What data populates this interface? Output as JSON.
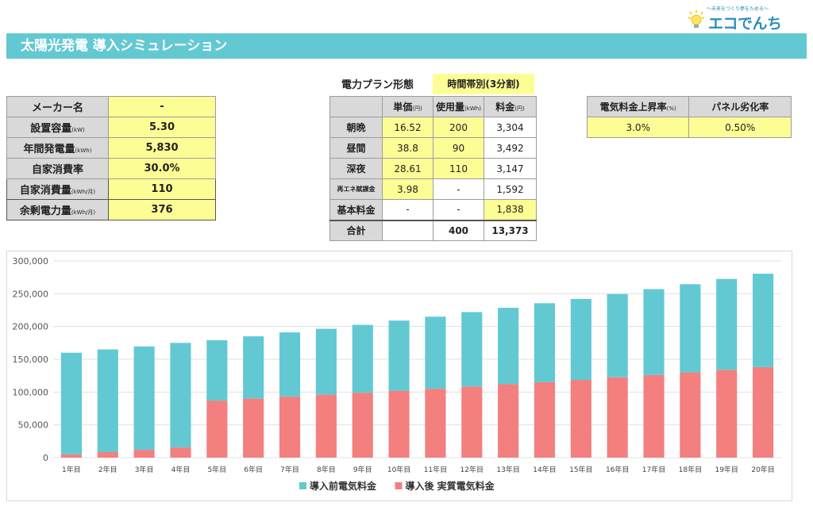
{
  "logo": {
    "tagline": "〜未来をつくり夢をためる〜",
    "brand": "エコでんち"
  },
  "title": "太陽光発電 導入シミュレーション",
  "left_table": [
    {
      "label": "メーカー名",
      "unit": "",
      "value": "-"
    },
    {
      "label": "設置容量",
      "unit": "(kW)",
      "value": "5.30"
    },
    {
      "label": "年間発電量",
      "unit": "(kWh)",
      "value": "5,830"
    },
    {
      "label": "自家消費率",
      "unit": "",
      "value": "30.0%"
    },
    {
      "label": "自家消費量",
      "unit": "(kWh/月)",
      "value": "110"
    },
    {
      "label": "余剰電力量",
      "unit": "(kWh/月)",
      "value": "376"
    }
  ],
  "plan": {
    "label": "電力プラン形態",
    "value": "時間帯別(3分割)",
    "headers": [
      {
        "label": "単価",
        "unit": "(円)"
      },
      {
        "label": "使用量",
        "unit": "(kWh)"
      },
      {
        "label": "料金",
        "unit": "(円)"
      }
    ],
    "rows": [
      {
        "label": "朝晩",
        "price": "16.52",
        "usage": "200",
        "fee": "3,304"
      },
      {
        "label": "昼間",
        "price": "38.8",
        "usage": "90",
        "fee": "3,492"
      },
      {
        "label": "深夜",
        "price": "28.61",
        "usage": "110",
        "fee": "3,147"
      },
      {
        "label": "再エネ賦課金",
        "price": "3.98",
        "usage": "-",
        "fee": "1,592"
      },
      {
        "label": "基本料金",
        "price": "-",
        "usage": "-",
        "fee": "1,838"
      }
    ],
    "total": {
      "label": "合計",
      "price": "",
      "usage": "400",
      "fee": "13,373"
    }
  },
  "rates": {
    "headers": [
      {
        "label": "電気料金上昇率",
        "unit": "(%)"
      },
      {
        "label": "パネル劣化率",
        "unit": ""
      }
    ],
    "values": [
      "3.0%",
      "0.50%"
    ]
  },
  "chart_data": {
    "type": "bar",
    "stacked": true,
    "categories": [
      "1年目",
      "2年目",
      "3年目",
      "4年目",
      "5年目",
      "6年目",
      "7年目",
      "8年目",
      "9年目",
      "10年目",
      "11年目",
      "12年目",
      "13年目",
      "14年目",
      "15年目",
      "16年目",
      "17年目",
      "18年目",
      "19年目",
      "20年目"
    ],
    "series": [
      {
        "name": "導入後 実質電気料金",
        "color": "#f47f7f",
        "values": [
          5000,
          8500,
          12000,
          15500,
          87000,
          90000,
          93000,
          96000,
          99000,
          102000,
          105000,
          108500,
          112000,
          115000,
          118500,
          122500,
          126000,
          130000,
          134000,
          138000
        ]
      },
      {
        "name": "導入前電気料金",
        "color": "#62c9d3",
        "values": [
          155000,
          156500,
          157500,
          159500,
          92000,
          95000,
          98000,
          100500,
          103500,
          107000,
          110000,
          113500,
          116500,
          120500,
          123500,
          127000,
          131000,
          134500,
          138500,
          142500
        ]
      }
    ],
    "legend_order": [
      "導入前電気料金",
      "導入後 実質電気料金"
    ],
    "ylim": [
      0,
      300000
    ],
    "yticks": [
      0,
      50000,
      100000,
      150000,
      200000,
      250000,
      300000
    ],
    "ytick_labels": [
      "0",
      "50,000",
      "100,000",
      "150,000",
      "200,000",
      "250,000",
      "300,000"
    ],
    "grid": true,
    "legend_position": "bottom"
  }
}
